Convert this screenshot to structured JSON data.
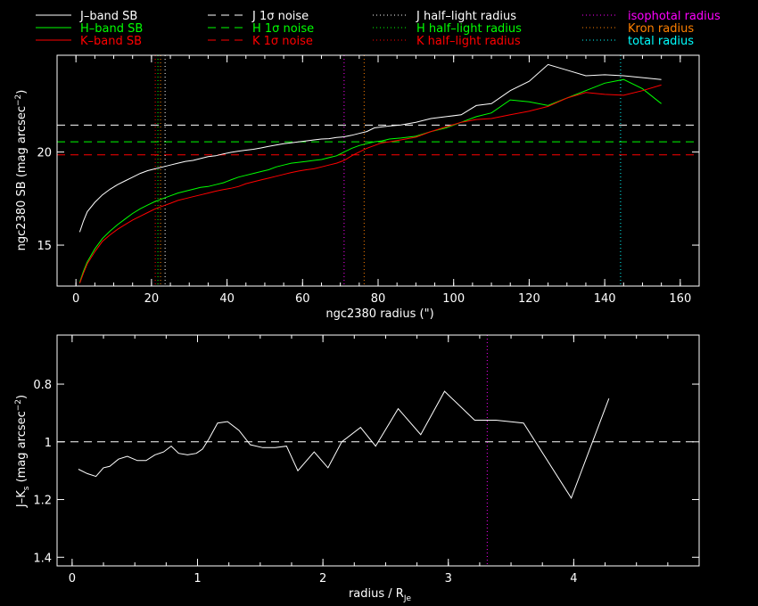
{
  "colors": {
    "background": "#000000",
    "axes": "#ffffff",
    "J": "#ffffff",
    "H": "#00ff00",
    "K": "#ff0000",
    "isophotal": "#ff00ff",
    "kron": "#ff8000",
    "total": "#00ffff"
  },
  "legend": {
    "col1": [
      {
        "label": "J–band SB",
        "color": "#ffffff",
        "style": "solid"
      },
      {
        "label": "H–band SB",
        "color": "#00ff00",
        "style": "solid"
      },
      {
        "label": "K–band SB",
        "color": "#ff0000",
        "style": "solid"
      }
    ],
    "col2": [
      {
        "label": "J 1σ noise",
        "color": "#ffffff",
        "style": "dashed"
      },
      {
        "label": "H 1σ noise",
        "color": "#00ff00",
        "style": "dashed"
      },
      {
        "label": "K 1σ noise",
        "color": "#ff0000",
        "style": "dashed"
      }
    ],
    "col3": [
      {
        "label": "J half–light radius",
        "color": "#ffffff",
        "style": "dotted"
      },
      {
        "label": "H half–light radius",
        "color": "#00ff00",
        "style": "dotted"
      },
      {
        "label": "K half–light radius",
        "color": "#ff0000",
        "style": "dotted"
      }
    ],
    "col4": [
      {
        "label": "isophotal radius",
        "color": "#ff00ff",
        "style": "dotted"
      },
      {
        "label": "Kron radius",
        "color": "#ff8000",
        "style": "dotted"
      },
      {
        "label": "total radius",
        "color": "#00ffff",
        "style": "dotted"
      }
    ]
  },
  "chart_data": [
    {
      "type": "line",
      "xlabel": "ngc2380 radius (\")",
      "ylabel": "ngc2380 SB (mag arcsec",
      "ylabel_sup": "−2",
      "ylabel_end": ")",
      "xlim": [
        -5,
        165
      ],
      "ylim": [
        25.2,
        12.8
      ],
      "y_inverted": true,
      "xticks": [
        0,
        20,
        40,
        60,
        80,
        100,
        120,
        140,
        160
      ],
      "yticks": [
        15,
        20
      ],
      "series": [
        {
          "name": "J–band SB",
          "color": "#ffffff",
          "x": [
            1,
            2,
            3,
            5,
            7,
            9,
            11,
            13,
            15,
            17,
            19,
            21,
            23,
            25,
            27,
            29,
            31,
            33,
            35,
            37,
            39,
            41,
            43,
            45,
            47,
            49,
            51,
            53,
            55,
            57,
            59,
            61,
            63,
            65,
            67,
            69,
            71,
            73,
            75,
            77,
            79,
            81,
            83,
            86,
            90,
            94,
            98,
            102,
            106,
            110,
            115,
            120,
            125,
            130,
            135,
            140,
            145,
            150,
            155
          ],
          "y": [
            15.7,
            16.3,
            16.8,
            17.3,
            17.7,
            18.0,
            18.25,
            18.45,
            18.65,
            18.85,
            19.0,
            19.1,
            19.2,
            19.3,
            19.4,
            19.5,
            19.55,
            19.65,
            19.75,
            19.8,
            19.9,
            19.98,
            20.05,
            20.1,
            20.15,
            20.22,
            20.3,
            20.38,
            20.45,
            20.5,
            20.55,
            20.6,
            20.65,
            20.7,
            20.72,
            20.78,
            20.82,
            20.9,
            21.0,
            21.1,
            21.3,
            21.35,
            21.4,
            21.45,
            21.6,
            21.8,
            21.9,
            22.0,
            22.5,
            22.6,
            23.3,
            23.8,
            24.7,
            24.4,
            24.1,
            24.15,
            24.1,
            24.0,
            23.9
          ]
        },
        {
          "name": "H–band SB",
          "color": "#00ff00",
          "x": [
            1,
            2,
            3,
            5,
            7,
            9,
            11,
            13,
            15,
            17,
            19,
            21,
            23,
            25,
            27,
            29,
            31,
            33,
            35,
            37,
            39,
            41,
            43,
            45,
            47,
            49,
            51,
            53,
            55,
            57,
            59,
            61,
            63,
            65,
            67,
            69,
            71,
            73,
            75,
            77,
            79,
            81,
            83,
            86,
            90,
            94,
            98,
            102,
            106,
            110,
            115,
            120,
            125,
            130,
            135,
            140,
            145,
            150,
            155
          ],
          "y": [
            13.0,
            13.6,
            14.1,
            14.8,
            15.35,
            15.75,
            16.1,
            16.4,
            16.7,
            16.95,
            17.15,
            17.35,
            17.5,
            17.65,
            17.8,
            17.9,
            18.0,
            18.1,
            18.15,
            18.25,
            18.35,
            18.5,
            18.65,
            18.75,
            18.85,
            18.95,
            19.05,
            19.2,
            19.3,
            19.4,
            19.45,
            19.5,
            19.55,
            19.6,
            19.7,
            19.8,
            20.0,
            20.2,
            20.35,
            20.45,
            20.55,
            20.6,
            20.7,
            20.75,
            20.85,
            21.1,
            21.3,
            21.6,
            21.9,
            22.1,
            22.8,
            22.7,
            22.5,
            22.9,
            23.3,
            23.7,
            23.9,
            23.4,
            22.6
          ]
        },
        {
          "name": "K–band SB",
          "color": "#ff0000",
          "x": [
            1,
            2,
            3,
            5,
            7,
            9,
            11,
            13,
            15,
            17,
            19,
            21,
            23,
            25,
            27,
            29,
            31,
            33,
            35,
            37,
            39,
            41,
            43,
            45,
            47,
            49,
            51,
            53,
            55,
            57,
            59,
            61,
            63,
            65,
            67,
            69,
            71,
            73,
            75,
            77,
            79,
            81,
            83,
            86,
            90,
            94,
            98,
            102,
            106,
            110,
            115,
            120,
            125,
            130,
            135,
            140,
            145,
            150,
            155
          ],
          "y": [
            12.95,
            13.5,
            14.0,
            14.65,
            15.2,
            15.55,
            15.85,
            16.1,
            16.35,
            16.55,
            16.75,
            16.95,
            17.1,
            17.25,
            17.4,
            17.5,
            17.6,
            17.7,
            17.8,
            17.9,
            17.98,
            18.05,
            18.15,
            18.3,
            18.4,
            18.5,
            18.6,
            18.7,
            18.8,
            18.9,
            18.98,
            19.05,
            19.1,
            19.2,
            19.3,
            19.4,
            19.55,
            19.8,
            20.0,
            20.2,
            20.35,
            20.5,
            20.55,
            20.65,
            20.8,
            21.1,
            21.35,
            21.6,
            21.75,
            21.8,
            22.0,
            22.2,
            22.45,
            22.9,
            23.2,
            23.1,
            23.05,
            23.3,
            23.6
          ]
        }
      ],
      "hlines": [
        {
          "name": "J 1σ noise",
          "y": 21.45,
          "color": "#ffffff",
          "style": "dashed"
        },
        {
          "name": "H 1σ noise",
          "y": 20.55,
          "color": "#00ff00",
          "style": "dashed"
        },
        {
          "name": "K 1σ noise",
          "y": 19.85,
          "color": "#ff0000",
          "style": "dashed"
        }
      ],
      "vlines": [
        {
          "name": "K half–light radius",
          "x": 21.0,
          "color": "#ff0000",
          "style": "dotted"
        },
        {
          "name": "H half–light radius",
          "x": 21.7,
          "color": "#00ff00",
          "style": "dotted"
        },
        {
          "name": "J half–light radius",
          "x": 23.6,
          "color": "#ffffff",
          "style": "dotted"
        },
        {
          "name": "Kron radius",
          "x": 22.4,
          "color": "#ff8000",
          "style": "dotted"
        },
        {
          "name": "isophotal radius",
          "x": 71.0,
          "color": "#ff00ff",
          "style": "dotted"
        },
        {
          "name": "Kron radius",
          "x": 76.3,
          "color": "#ff8000",
          "style": "dotted"
        },
        {
          "name": "total radius",
          "x": 144.2,
          "color": "#00ffff",
          "style": "dotted"
        }
      ]
    },
    {
      "type": "line",
      "xlabel": "radius / R",
      "xlabel_sub": "Je",
      "ylabel": "J–K",
      "ylabel_sub": "s",
      "ylabel_rest": " (mag arcsec",
      "ylabel_sup": "−2",
      "ylabel_end": ")",
      "xlim": [
        -0.12,
        5.0
      ],
      "ylim": [
        0.63,
        1.43
      ],
      "xticks": [
        0,
        1,
        2,
        3,
        4
      ],
      "yticks": [
        0.8,
        1,
        1.2,
        1.4
      ],
      "ytick_labels": [
        "0.8",
        "1",
        "1.2",
        "1.4"
      ],
      "series": [
        {
          "name": "J–K",
          "color": "#ffffff",
          "x": [
            0.05,
            0.12,
            0.19,
            0.25,
            0.3,
            0.37,
            0.44,
            0.52,
            0.59,
            0.66,
            0.73,
            0.79,
            0.85,
            0.92,
            0.99,
            1.04,
            1.09,
            1.16,
            1.24,
            1.33,
            1.42,
            1.52,
            1.62,
            1.71,
            1.8,
            1.93,
            2.04,
            2.15,
            2.3,
            2.42,
            2.6,
            2.78,
            2.97,
            3.21,
            3.38,
            3.6,
            3.98,
            4.28
          ],
          "y": [
            1.095,
            1.11,
            1.12,
            1.09,
            1.085,
            1.06,
            1.05,
            1.065,
            1.065,
            1.045,
            1.035,
            1.015,
            1.04,
            1.045,
            1.04,
            1.025,
            0.99,
            0.935,
            0.93,
            0.96,
            1.01,
            1.02,
            1.02,
            1.015,
            1.1,
            1.035,
            1.09,
            1.0,
            0.95,
            1.015,
            0.885,
            0.975,
            0.825,
            0.925,
            0.925,
            0.935,
            1.195,
            0.85
          ]
        }
      ],
      "hlines": [
        {
          "name": "reference",
          "y": 1.0,
          "color": "#ffffff",
          "style": "dashed"
        }
      ],
      "vlines": [
        {
          "name": "isophotal radius",
          "x": 3.31,
          "color": "#ff00ff",
          "style": "dotted"
        }
      ]
    }
  ]
}
